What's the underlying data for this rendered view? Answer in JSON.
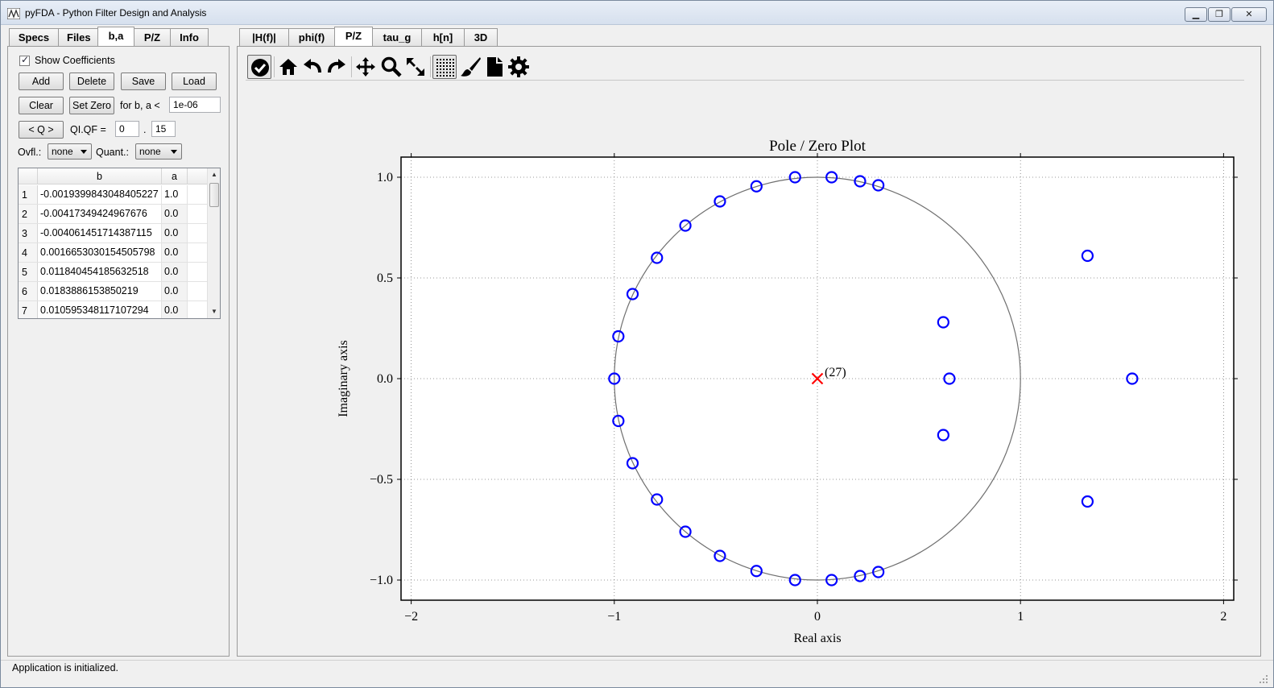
{
  "window": {
    "title": "pyFDA - Python Filter Design and Analysis"
  },
  "left_tabs": [
    {
      "label": "Specs",
      "active": false
    },
    {
      "label": "Files",
      "active": false
    },
    {
      "label": "b,a",
      "active": true
    },
    {
      "label": "P/Z",
      "active": false
    },
    {
      "label": "Info",
      "active": false
    }
  ],
  "coeffs": {
    "show_label": "Show Coefficients",
    "show_checked": true,
    "add_label": "Add",
    "delete_label": "Delete",
    "save_label": "Save",
    "load_label": "Load",
    "clear_label": "Clear",
    "setzero_label": "Set Zero",
    "threshold_label": "for b, a <",
    "threshold_value": "1e-06",
    "q_label": "< Q >",
    "qiqf_label": "QI.QF =",
    "qi_value": "0",
    "dot": ".",
    "qf_value": "15",
    "ovfl_label": "Ovfl.:",
    "ovfl_value": "none",
    "quant_label": "Quant.:",
    "quant_value": "none"
  },
  "table": {
    "headers": [
      "b",
      "a"
    ],
    "rows": [
      {
        "n": "1",
        "b": "-0.0019399843048405227",
        "a": "1.0"
      },
      {
        "n": "2",
        "b": "-0.00417349424967676",
        "a": "0.0"
      },
      {
        "n": "3",
        "b": "-0.004061451714387115",
        "a": "0.0"
      },
      {
        "n": "4",
        "b": "0.0016653030154505798",
        "a": "0.0"
      },
      {
        "n": "5",
        "b": "0.011840454185632518",
        "a": "0.0"
      },
      {
        "n": "6",
        "b": "0.0183886153850219",
        "a": "0.0"
      },
      {
        "n": "7",
        "b": "0.010595348117107294",
        "a": "0.0"
      }
    ]
  },
  "right_tabs": [
    {
      "label": "|H(f)|",
      "active": false
    },
    {
      "label": "phi(f)",
      "active": false
    },
    {
      "label": "P/Z",
      "active": true
    },
    {
      "label": "tau_g",
      "active": false
    },
    {
      "label": "h[n]",
      "active": false
    },
    {
      "label": "3D",
      "active": false
    }
  ],
  "toolbar": {
    "icons": [
      "check-icon",
      "home-icon",
      "undo-icon",
      "redo-icon",
      "pan-icon",
      "zoom-icon",
      "fullscreen-icon",
      "grid-icon",
      "brush-icon",
      "document-icon",
      "gear-icon"
    ]
  },
  "chart_data": {
    "type": "scatter",
    "title": "Pole / Zero Plot",
    "xlabel": "Real axis",
    "ylabel": "Imaginary axis",
    "xlim": [
      -2.05,
      2.05
    ],
    "ylim": [
      -1.1,
      1.1
    ],
    "xticks": [
      -2,
      -1,
      0,
      1,
      2
    ],
    "xtick_labels": [
      "−2",
      "−1",
      "0",
      "1",
      "2"
    ],
    "yticks": [
      1.0,
      0.5,
      0.0,
      -0.5,
      -1.0
    ],
    "ytick_labels": [
      "1.0",
      "0.5",
      "0.0",
      "−0.5",
      "−1.0"
    ],
    "grid": true,
    "unit_circle": true,
    "series": [
      {
        "name": "zeros",
        "marker": "circle",
        "color": "#0000ff",
        "points": [
          [
            0.07,
            1.0
          ],
          [
            -0.11,
            1.0
          ],
          [
            0.21,
            0.98
          ],
          [
            0.3,
            0.96
          ],
          [
            -0.3,
            0.955
          ],
          [
            -0.48,
            0.88
          ],
          [
            -0.65,
            0.76
          ],
          [
            -0.79,
            0.6
          ],
          [
            -0.91,
            0.42
          ],
          [
            -0.98,
            0.21
          ],
          [
            -1.0,
            0.0
          ],
          [
            -0.98,
            -0.21
          ],
          [
            -0.91,
            -0.42
          ],
          [
            -0.79,
            -0.6
          ],
          [
            -0.65,
            -0.76
          ],
          [
            -0.48,
            -0.88
          ],
          [
            -0.3,
            -0.955
          ],
          [
            -0.11,
            -1.0
          ],
          [
            0.07,
            -1.0
          ],
          [
            0.21,
            -0.98
          ],
          [
            0.3,
            -0.96
          ],
          [
            0.62,
            0.28
          ],
          [
            0.65,
            0.0
          ],
          [
            0.62,
            -0.28
          ],
          [
            1.33,
            0.61
          ],
          [
            1.55,
            0.0
          ],
          [
            1.33,
            -0.61
          ]
        ]
      },
      {
        "name": "poles",
        "marker": "x",
        "color": "#ff0000",
        "points": [
          [
            0.0,
            0.0
          ]
        ]
      }
    ],
    "annotations": [
      {
        "text": "(27)",
        "x": 0.0,
        "y": 0.0
      }
    ]
  },
  "status": {
    "text": "Application is initialized."
  }
}
